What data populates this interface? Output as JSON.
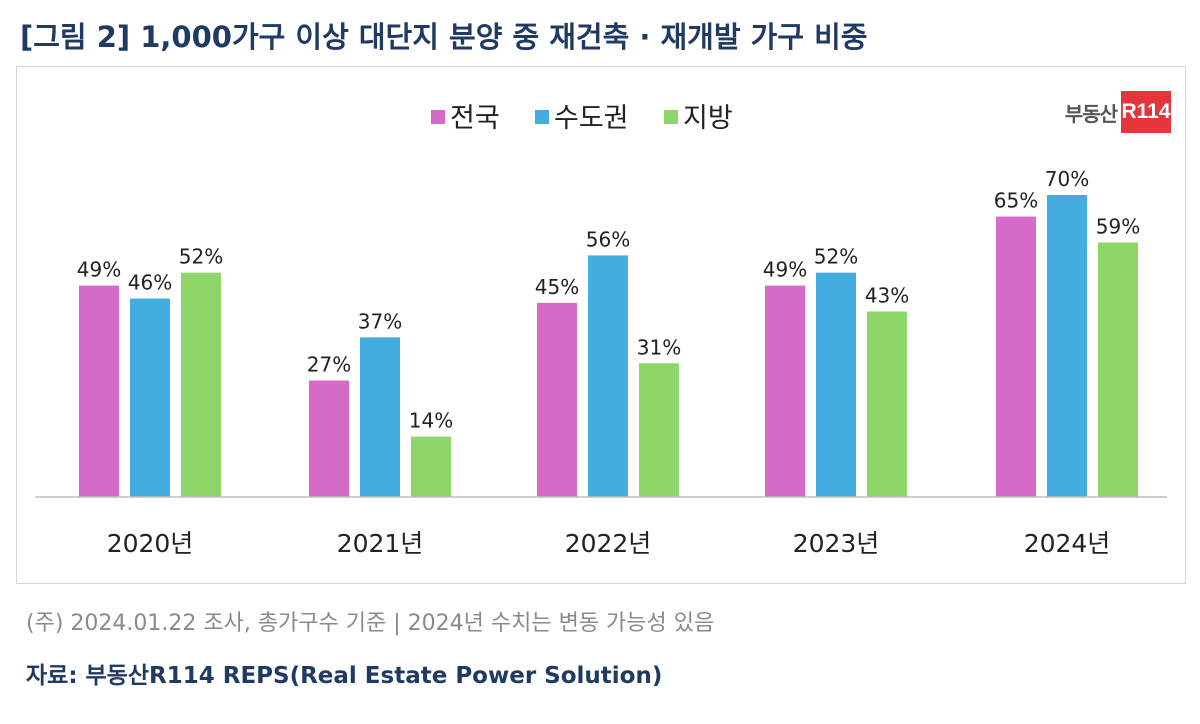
{
  "title": "[그림 2] 1,000가구 이상 대단지 분양 중 재건축 · 재개발 가구 비중",
  "logo": {
    "word": "부동산",
    "box": "R114"
  },
  "note": "(주) 2024.01.22 조사, 총가구수 기준 | 2024년 수치는 변동 가능성 있음",
  "source": "자료: 부동산R114 REPS(Real Estate Power Solution)",
  "colors": {
    "전국": "#d56ac8",
    "수도권": "#44addf",
    "지방": "#8fd66a",
    "axis": "#bdbdbd"
  },
  "chart_data": {
    "type": "bar",
    "categories": [
      "2020년",
      "2021년",
      "2022년",
      "2023년",
      "2024년"
    ],
    "series": [
      {
        "name": "전국",
        "values": [
          49,
          27,
          45,
          49,
          65
        ],
        "labels": [
          "49%",
          "27%",
          "45%",
          "49%",
          "65%"
        ]
      },
      {
        "name": "수도권",
        "values": [
          46,
          37,
          56,
          52,
          70
        ],
        "labels": [
          "46%",
          "37%",
          "56%",
          "52%",
          "70%"
        ]
      },
      {
        "name": "지방",
        "values": [
          52,
          14,
          31,
          43,
          59
        ],
        "labels": [
          "52%",
          "14%",
          "31%",
          "43%",
          "59%"
        ]
      }
    ],
    "ylim": [
      0,
      70
    ],
    "legend_position": "top-center",
    "grid": false
  }
}
